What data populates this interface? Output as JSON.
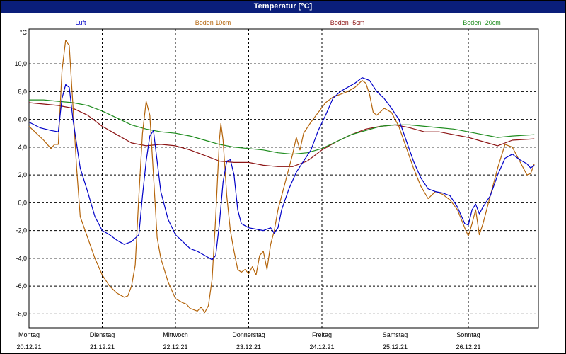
{
  "window": {
    "title": "Temperatur [°C]"
  },
  "chart_data": {
    "type": "line",
    "title": "Temperatur [°C]",
    "ylabel": "°C",
    "ylim": [
      -9,
      12.5
    ],
    "xlim": [
      0,
      7
    ],
    "grid": true,
    "legend_placement": "top",
    "yticks": [
      {
        "value": 10,
        "label": "10,0"
      },
      {
        "value": 8,
        "label": "8,0"
      },
      {
        "value": 6,
        "label": "6,0"
      },
      {
        "value": 4,
        "label": "4,0"
      },
      {
        "value": 2,
        "label": "2,0"
      },
      {
        "value": 0,
        "label": "0,0"
      },
      {
        "value": -2,
        "label": "-2,0"
      },
      {
        "value": -4,
        "label": "-4,0"
      },
      {
        "value": -6,
        "label": "-6,0"
      },
      {
        "value": -8,
        "label": "-8,0"
      }
    ],
    "xticks": [
      {
        "day": "Montag",
        "date": "20.12.21",
        "x": 0
      },
      {
        "day": "Dienstag",
        "date": "21.12.21",
        "x": 1
      },
      {
        "day": "Mittwoch",
        "date": "22.12.21",
        "x": 2
      },
      {
        "day": "Donnerstag",
        "date": "23.12.21",
        "x": 3
      },
      {
        "day": "Freitag",
        "date": "24.12.21",
        "x": 4
      },
      {
        "day": "Samstag",
        "date": "25.12.21",
        "x": 5
      },
      {
        "day": "Sonntag",
        "date": "26.12.21",
        "x": 6
      }
    ],
    "series": [
      {
        "name": "Luft",
        "color": "#0000c8",
        "points": [
          [
            0,
            5.8
          ],
          [
            0.15,
            5.4
          ],
          [
            0.3,
            5.2
          ],
          [
            0.4,
            5.1
          ],
          [
            0.45,
            7.5
          ],
          [
            0.5,
            8.5
          ],
          [
            0.55,
            8.3
          ],
          [
            0.6,
            6.0
          ],
          [
            0.7,
            2.5
          ],
          [
            0.8,
            0.8
          ],
          [
            0.9,
            -1.0
          ],
          [
            1.0,
            -2.0
          ],
          [
            1.1,
            -2.3
          ],
          [
            1.2,
            -2.7
          ],
          [
            1.3,
            -3.0
          ],
          [
            1.4,
            -2.8
          ],
          [
            1.5,
            -2.3
          ],
          [
            1.55,
            0.5
          ],
          [
            1.6,
            3.0
          ],
          [
            1.65,
            4.8
          ],
          [
            1.7,
            5.2
          ],
          [
            1.75,
            3.0
          ],
          [
            1.8,
            0.8
          ],
          [
            1.9,
            -1.2
          ],
          [
            2.0,
            -2.3
          ],
          [
            2.1,
            -2.8
          ],
          [
            2.2,
            -3.3
          ],
          [
            2.3,
            -3.5
          ],
          [
            2.4,
            -3.8
          ],
          [
            2.5,
            -4.1
          ],
          [
            2.55,
            -3.8
          ],
          [
            2.6,
            -1.5
          ],
          [
            2.65,
            1.5
          ],
          [
            2.7,
            3.0
          ],
          [
            2.75,
            3.1
          ],
          [
            2.8,
            2.0
          ],
          [
            2.85,
            -0.5
          ],
          [
            2.9,
            -1.5
          ],
          [
            3.0,
            -1.8
          ],
          [
            3.1,
            -1.9
          ],
          [
            3.2,
            -2.0
          ],
          [
            3.3,
            -1.8
          ],
          [
            3.35,
            -2.2
          ],
          [
            3.4,
            -1.8
          ],
          [
            3.45,
            -0.5
          ],
          [
            3.55,
            1.0
          ],
          [
            3.65,
            2.2
          ],
          [
            3.75,
            3.0
          ],
          [
            3.85,
            3.8
          ],
          [
            3.95,
            5.2
          ],
          [
            4.05,
            6.3
          ],
          [
            4.15,
            7.5
          ],
          [
            4.25,
            8.0
          ],
          [
            4.35,
            8.3
          ],
          [
            4.45,
            8.6
          ],
          [
            4.55,
            9.0
          ],
          [
            4.65,
            8.8
          ],
          [
            4.75,
            8.0
          ],
          [
            4.85,
            7.5
          ],
          [
            4.95,
            6.8
          ],
          [
            5.05,
            6.0
          ],
          [
            5.15,
            4.5
          ],
          [
            5.25,
            3.0
          ],
          [
            5.35,
            1.8
          ],
          [
            5.45,
            1.0
          ],
          [
            5.55,
            0.8
          ],
          [
            5.65,
            0.7
          ],
          [
            5.75,
            0.5
          ],
          [
            5.85,
            -0.3
          ],
          [
            5.95,
            -1.5
          ],
          [
            6.0,
            -1.6
          ],
          [
            6.05,
            -0.5
          ],
          [
            6.1,
            -0.1
          ],
          [
            6.15,
            -0.8
          ],
          [
            6.2,
            -0.3
          ],
          [
            6.3,
            0.5
          ],
          [
            6.4,
            2.0
          ],
          [
            6.5,
            3.2
          ],
          [
            6.6,
            3.5
          ],
          [
            6.7,
            3.1
          ],
          [
            6.8,
            2.8
          ],
          [
            6.85,
            2.5
          ],
          [
            6.9,
            2.7
          ]
        ]
      },
      {
        "name": "Boden 10cm",
        "color": "#b4640a",
        "points": [
          [
            0,
            5.5
          ],
          [
            0.1,
            5.0
          ],
          [
            0.2,
            4.5
          ],
          [
            0.3,
            3.9
          ],
          [
            0.35,
            4.2
          ],
          [
            0.4,
            4.2
          ],
          [
            0.45,
            9.5
          ],
          [
            0.5,
            11.7
          ],
          [
            0.55,
            11.3
          ],
          [
            0.6,
            7.0
          ],
          [
            0.65,
            2.5
          ],
          [
            0.7,
            -1.0
          ],
          [
            0.8,
            -2.5
          ],
          [
            0.9,
            -4.0
          ],
          [
            1.0,
            -5.2
          ],
          [
            1.1,
            -6.0
          ],
          [
            1.2,
            -6.5
          ],
          [
            1.3,
            -6.8
          ],
          [
            1.35,
            -6.7
          ],
          [
            1.4,
            -6.0
          ],
          [
            1.45,
            -4.5
          ],
          [
            1.5,
            0.5
          ],
          [
            1.55,
            5.0
          ],
          [
            1.6,
            7.3
          ],
          [
            1.65,
            6.3
          ],
          [
            1.7,
            2.0
          ],
          [
            1.75,
            -2.5
          ],
          [
            1.8,
            -4.0
          ],
          [
            1.9,
            -5.7
          ],
          [
            2.0,
            -6.9
          ],
          [
            2.1,
            -7.2
          ],
          [
            2.15,
            -7.3
          ],
          [
            2.2,
            -7.6
          ],
          [
            2.3,
            -7.8
          ],
          [
            2.35,
            -7.5
          ],
          [
            2.4,
            -7.9
          ],
          [
            2.45,
            -7.4
          ],
          [
            2.5,
            -5.5
          ],
          [
            2.55,
            -1.0
          ],
          [
            2.6,
            4.5
          ],
          [
            2.62,
            5.7
          ],
          [
            2.65,
            4.5
          ],
          [
            2.7,
            0.5
          ],
          [
            2.75,
            -2.0
          ],
          [
            2.8,
            -3.5
          ],
          [
            2.85,
            -4.8
          ],
          [
            2.9,
            -5.0
          ],
          [
            2.95,
            -4.8
          ],
          [
            3.0,
            -5.1
          ],
          [
            3.05,
            -4.6
          ],
          [
            3.1,
            -5.2
          ],
          [
            3.15,
            -3.8
          ],
          [
            3.2,
            -3.5
          ],
          [
            3.25,
            -4.8
          ],
          [
            3.3,
            -3.0
          ],
          [
            3.35,
            -2.0
          ],
          [
            3.4,
            -0.5
          ],
          [
            3.5,
            1.5
          ],
          [
            3.6,
            3.5
          ],
          [
            3.65,
            4.7
          ],
          [
            3.7,
            3.8
          ],
          [
            3.75,
            5.0
          ],
          [
            3.85,
            5.8
          ],
          [
            3.95,
            6.5
          ],
          [
            4.05,
            7.2
          ],
          [
            4.15,
            7.6
          ],
          [
            4.25,
            7.8
          ],
          [
            4.35,
            8.0
          ],
          [
            4.45,
            8.3
          ],
          [
            4.55,
            8.8
          ],
          [
            4.6,
            8.6
          ],
          [
            4.65,
            7.8
          ],
          [
            4.7,
            6.5
          ],
          [
            4.75,
            6.3
          ],
          [
            4.85,
            6.8
          ],
          [
            4.95,
            6.5
          ],
          [
            5.05,
            5.5
          ],
          [
            5.15,
            4.0
          ],
          [
            5.25,
            2.5
          ],
          [
            5.35,
            1.2
          ],
          [
            5.45,
            0.3
          ],
          [
            5.55,
            0.8
          ],
          [
            5.65,
            0.6
          ],
          [
            5.75,
            0.2
          ],
          [
            5.85,
            -0.5
          ],
          [
            5.95,
            -1.8
          ],
          [
            6.0,
            -2.4
          ],
          [
            6.05,
            -1.5
          ],
          [
            6.1,
            -0.5
          ],
          [
            6.15,
            -2.3
          ],
          [
            6.2,
            -1.5
          ],
          [
            6.3,
            0.5
          ],
          [
            6.4,
            2.5
          ],
          [
            6.5,
            4.2
          ],
          [
            6.6,
            4.0
          ],
          [
            6.7,
            3.0
          ],
          [
            6.8,
            2.0
          ],
          [
            6.85,
            2.1
          ],
          [
            6.9,
            2.8
          ]
        ]
      },
      {
        "name": "Boden -5cm",
        "color": "#8c1414",
        "points": [
          [
            0,
            7.2
          ],
          [
            0.2,
            7.1
          ],
          [
            0.4,
            7.0
          ],
          [
            0.6,
            6.8
          ],
          [
            0.8,
            6.3
          ],
          [
            1.0,
            5.5
          ],
          [
            1.2,
            4.9
          ],
          [
            1.4,
            4.3
          ],
          [
            1.6,
            4.1
          ],
          [
            1.8,
            4.2
          ],
          [
            2.0,
            4.1
          ],
          [
            2.2,
            3.8
          ],
          [
            2.4,
            3.4
          ],
          [
            2.6,
            3.0
          ],
          [
            2.8,
            2.9
          ],
          [
            3.0,
            2.9
          ],
          [
            3.2,
            2.7
          ],
          [
            3.4,
            2.6
          ],
          [
            3.6,
            2.6
          ],
          [
            3.8,
            3.0
          ],
          [
            4.0,
            3.8
          ],
          [
            4.2,
            4.4
          ],
          [
            4.4,
            4.9
          ],
          [
            4.6,
            5.3
          ],
          [
            4.8,
            5.5
          ],
          [
            5.0,
            5.6
          ],
          [
            5.2,
            5.4
          ],
          [
            5.4,
            5.1
          ],
          [
            5.6,
            5.1
          ],
          [
            5.8,
            4.9
          ],
          [
            6.0,
            4.7
          ],
          [
            6.2,
            4.4
          ],
          [
            6.4,
            4.1
          ],
          [
            6.6,
            4.5
          ],
          [
            6.9,
            4.6
          ]
        ]
      },
      {
        "name": "Boden -20cm",
        "color": "#1e8c1e",
        "points": [
          [
            0,
            7.4
          ],
          [
            0.2,
            7.4
          ],
          [
            0.4,
            7.3
          ],
          [
            0.6,
            7.2
          ],
          [
            0.8,
            7.0
          ],
          [
            1.0,
            6.6
          ],
          [
            1.2,
            6.1
          ],
          [
            1.4,
            5.6
          ],
          [
            1.6,
            5.3
          ],
          [
            1.8,
            5.1
          ],
          [
            2.0,
            5.0
          ],
          [
            2.2,
            4.8
          ],
          [
            2.4,
            4.5
          ],
          [
            2.6,
            4.2
          ],
          [
            2.8,
            4.0
          ],
          [
            3.0,
            3.9
          ],
          [
            3.2,
            3.8
          ],
          [
            3.4,
            3.6
          ],
          [
            3.6,
            3.5
          ],
          [
            3.8,
            3.6
          ],
          [
            4.0,
            3.9
          ],
          [
            4.2,
            4.4
          ],
          [
            4.4,
            4.9
          ],
          [
            4.6,
            5.2
          ],
          [
            4.8,
            5.5
          ],
          [
            5.0,
            5.6
          ],
          [
            5.2,
            5.6
          ],
          [
            5.4,
            5.5
          ],
          [
            5.6,
            5.4
          ],
          [
            5.8,
            5.3
          ],
          [
            6.0,
            5.1
          ],
          [
            6.2,
            4.9
          ],
          [
            6.4,
            4.7
          ],
          [
            6.6,
            4.8
          ],
          [
            6.9,
            4.9
          ]
        ]
      }
    ]
  }
}
